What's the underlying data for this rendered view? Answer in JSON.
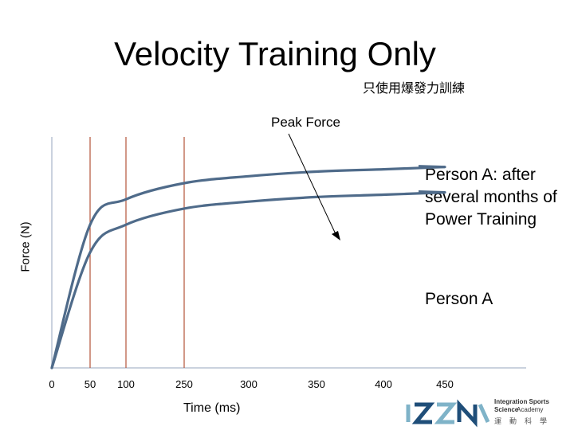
{
  "slide": {
    "title": "Velocity Training Only",
    "subtitle": "只使用爆發力訓練",
    "peak_label": "Peak Force",
    "person_a_after": "Person A: after several months of Power Training",
    "person_a": "Person A",
    "logo": {
      "line1": "Integration Sports Science",
      "line2": "Academy",
      "cn": "運動科學"
    }
  },
  "chart_data": {
    "type": "line",
    "xlabel": "Time (ms)",
    "ylabel": "Force (N)",
    "x_ticks": [
      "0",
      "50",
      "100",
      "250",
      "300",
      "350",
      "400",
      "450"
    ],
    "vertical_markers": [
      "50",
      "100",
      "250"
    ],
    "series": [
      {
        "name": "Person A: after several months of Power Training",
        "color": "#4f6b8a",
        "values": [
          0,
          0.62,
          0.73,
          0.8,
          0.83,
          0.85,
          0.86,
          0.87
        ]
      },
      {
        "name": "Person A",
        "color": "#4f6b8a",
        "values": [
          0,
          0.5,
          0.62,
          0.69,
          0.72,
          0.74,
          0.75,
          0.76
        ]
      }
    ],
    "axis_color": "#b8c4d4",
    "marker_color": "#b5543a",
    "grid": false
  }
}
